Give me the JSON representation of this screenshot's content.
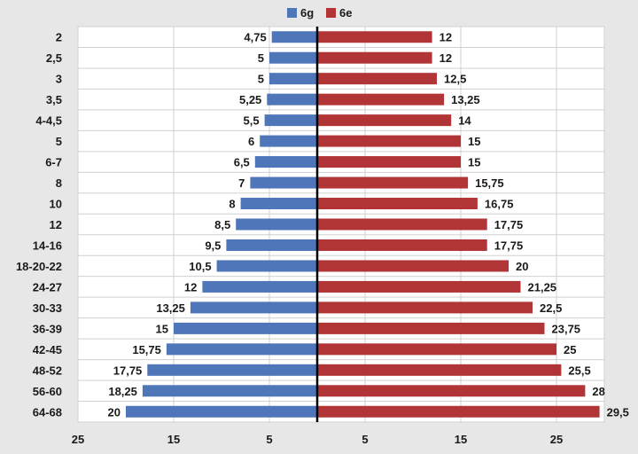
{
  "chart_data": {
    "type": "bar",
    "orientation": "horizontal-diverging",
    "categories": [
      "2",
      "2,5",
      "3",
      "3,5",
      "4-4,5",
      "5",
      "6-7",
      "8",
      "10",
      "12",
      "14-16",
      "18-20-22",
      "24-27",
      "30-33",
      "36-39",
      "42-45",
      "48-52",
      "56-60",
      "64-68"
    ],
    "series": [
      {
        "name": "6g",
        "color": "#4f76b9",
        "side": "left",
        "values": [
          4.75,
          5,
          5,
          5.25,
          5.5,
          6,
          6.5,
          7,
          8,
          8.5,
          9.5,
          10.5,
          12,
          13.25,
          15,
          15.75,
          17.75,
          18.25,
          20
        ],
        "labels": [
          "4,75",
          "5",
          "5",
          "5,25",
          "5,5",
          "6",
          "6,5",
          "7",
          "8",
          "8,5",
          "9,5",
          "10,5",
          "12",
          "13,25",
          "15",
          "15,75",
          "17,75",
          "18,25",
          "20"
        ]
      },
      {
        "name": "6e",
        "color": "#b13536",
        "side": "right",
        "values": [
          12,
          12,
          12.5,
          13.25,
          14,
          15,
          15,
          15.75,
          16.75,
          17.75,
          17.75,
          20,
          21.25,
          22.5,
          23.75,
          25,
          25.5,
          28,
          29.5
        ],
        "labels": [
          "12",
          "12",
          "12,5",
          "13,25",
          "14",
          "15",
          "15",
          "15,75",
          "16,75",
          "17,75",
          "17,75",
          "20",
          "21,25",
          "22,5",
          "23,75",
          "25",
          "25,5",
          "28",
          "29,5"
        ]
      }
    ],
    "x_ticks": [
      {
        "value": -25,
        "label": "25"
      },
      {
        "value": -15,
        "label": "15"
      },
      {
        "value": -5,
        "label": "5"
      },
      {
        "value": 5,
        "label": "5"
      },
      {
        "value": 15,
        "label": "15"
      },
      {
        "value": 25,
        "label": "25"
      }
    ],
    "xlim": [
      -25,
      30
    ],
    "grid": true,
    "legend": "top-center",
    "title": "",
    "xlabel": "",
    "ylabel": ""
  }
}
